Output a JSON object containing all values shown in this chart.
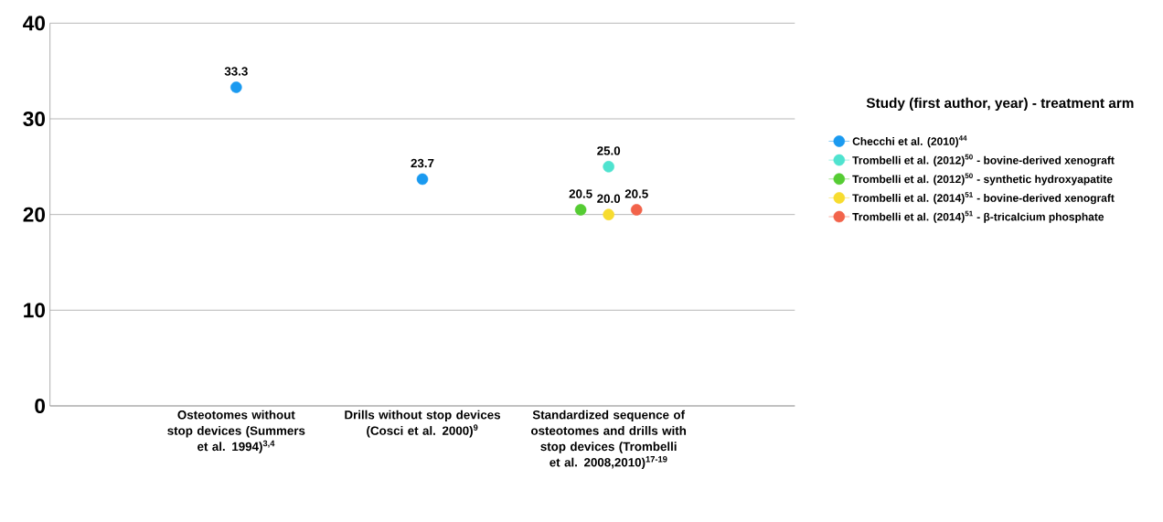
{
  "chart_data": {
    "type": "scatter",
    "categories": [
      "Osteotomes without stop devices (Summers et al. 1994)$^{3,4}$",
      "Drills without stop devices (Cosci et al. 2000)$^{9}$",
      "Standardized sequence of osteotomes and drills with stop devices (Trombelli et al. 2008,2010)$^{17-19}$"
    ],
    "series": [
      {
        "name": "Checchi et al. (2010)$^{44}$",
        "color": "#1a9af0",
        "values": [
          33.3,
          23.7,
          null
        ],
        "value_labels": [
          "33.3",
          "23.7",
          null
        ]
      },
      {
        "name": "Trombelli et al. (2012)$^{50}$ - bovine-derived xenograft",
        "color": "#4fe3cf",
        "values": [
          null,
          null,
          25.0
        ],
        "value_labels": [
          null,
          null,
          "25.0"
        ]
      },
      {
        "name": "Trombelli et al. (2012)$^{50}$ - synthetic hydroxyapatite",
        "color": "#55cc33",
        "values": [
          null,
          null,
          20.5
        ],
        "value_labels": [
          null,
          null,
          "20.5"
        ]
      },
      {
        "name": "Trombelli et al. (2014)$^{51}$ - bovine-derived xenograft",
        "color": "#f7dc2f",
        "values": [
          null,
          null,
          20.0
        ],
        "value_labels": [
          null,
          null,
          "20.0"
        ]
      },
      {
        "name": "Trombelli et al. (2014)$^{51}$ - β-tricalcium phosphate",
        "color": "#f2634a",
        "values": [
          null,
          null,
          20.5
        ],
        "value_labels": [
          null,
          null,
          "20.5"
        ]
      }
    ],
    "legend_title": "Study (first author, year) - treatment arm",
    "legend": "right",
    "marker": "circle",
    "grid": "y",
    "ylim": [
      0,
      40
    ],
    "yticks": [
      0,
      10,
      20,
      30,
      40
    ]
  }
}
